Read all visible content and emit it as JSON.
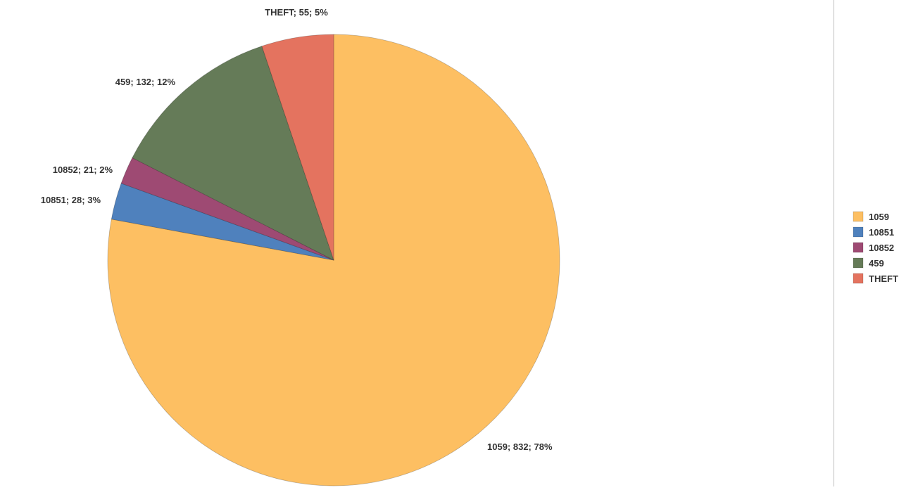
{
  "chart_data": {
    "type": "pie",
    "title": "",
    "slices": [
      {
        "label": "1059",
        "value": 832,
        "percent": "78%",
        "color": "#FDBF62"
      },
      {
        "label": "10851",
        "value": 28,
        "percent": "3%",
        "color": "#4F81BD"
      },
      {
        "label": "10852",
        "value": 21,
        "percent": "2%",
        "color": "#9E4A73"
      },
      {
        "label": "459",
        "value": 132,
        "percent": "12%",
        "color": "#657B58"
      },
      {
        "label": "THEFT",
        "value": 55,
        "percent": "5%",
        "color": "#E4735F"
      }
    ],
    "data_labels": [
      "1059; 832; 78%",
      "10851; 28; 3%",
      "10852; 21; 2%",
      "459; 132; 12%",
      "THEFT; 55; 5%"
    ],
    "legend": {
      "placement": "right",
      "entries": [
        "1059",
        "10851",
        "10852",
        "459",
        "THEFT"
      ]
    }
  }
}
